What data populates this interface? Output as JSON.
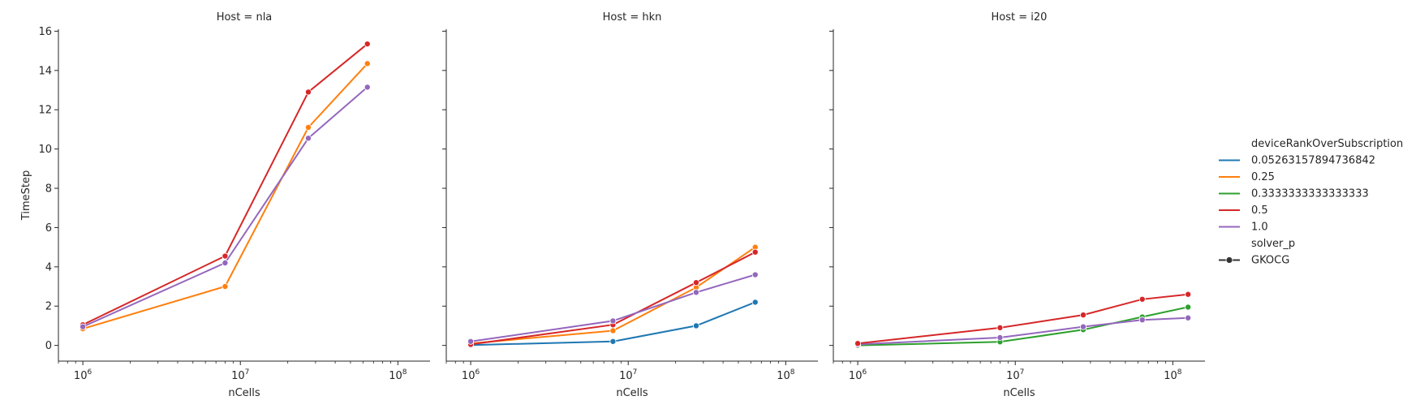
{
  "chart_data": [
    {
      "type": "line",
      "title": "Host = nla",
      "xlabel": "nCells",
      "ylabel": "TimeStep",
      "xscale": "log",
      "xlim": [
        700000,
        160000000
      ],
      "ylim": [
        -0.8,
        16.1
      ],
      "xticks": [
        {
          "value": 1000000,
          "base": "10",
          "exp": "6"
        },
        {
          "value": 10000000,
          "base": "10",
          "exp": "7"
        },
        {
          "value": 100000000,
          "base": "10",
          "exp": "8"
        }
      ],
      "yticks": [
        "0",
        "2",
        "4",
        "6",
        "8",
        "10",
        "12",
        "14",
        "16"
      ],
      "series": [
        {
          "name": "0.25",
          "color": "#ff7f0e",
          "x": [
            1000000,
            8000000,
            27000000,
            64000000
          ],
          "y": [
            0.85,
            3.0,
            11.1,
            14.35
          ]
        },
        {
          "name": "0.5",
          "color": "#d62728",
          "x": [
            1000000,
            8000000,
            27000000,
            64000000
          ],
          "y": [
            1.05,
            4.55,
            12.9,
            15.35
          ]
        },
        {
          "name": "1.0",
          "color": "#9467bd",
          "x": [
            1000000,
            8000000,
            27000000,
            64000000
          ],
          "y": [
            0.95,
            4.2,
            10.55,
            13.15
          ]
        }
      ]
    },
    {
      "type": "line",
      "title": "Host = hkn",
      "xlabel": "nCells",
      "ylabel": "",
      "xscale": "log",
      "xlim": [
        700000,
        160000000
      ],
      "ylim": [
        -0.8,
        16.1
      ],
      "xticks": [
        {
          "value": 1000000,
          "base": "10",
          "exp": "6"
        },
        {
          "value": 10000000,
          "base": "10",
          "exp": "7"
        },
        {
          "value": 100000000,
          "base": "10",
          "exp": "8"
        }
      ],
      "yticks": [],
      "series": [
        {
          "name": "0.05263157894736842",
          "color": "#1f77b4",
          "x": [
            1000000,
            8000000,
            27000000,
            64000000
          ],
          "y": [
            0.02,
            0.2,
            1.0,
            2.2
          ]
        },
        {
          "name": "0.25",
          "color": "#ff7f0e",
          "x": [
            1000000,
            8000000,
            27000000,
            64000000
          ],
          "y": [
            0.1,
            0.75,
            2.95,
            5.0
          ]
        },
        {
          "name": "0.5",
          "color": "#d62728",
          "x": [
            1000000,
            8000000,
            27000000,
            64000000
          ],
          "y": [
            0.05,
            1.05,
            3.2,
            4.75
          ]
        },
        {
          "name": "1.0",
          "color": "#9467bd",
          "x": [
            1000000,
            8000000,
            27000000,
            64000000
          ],
          "y": [
            0.2,
            1.25,
            2.7,
            3.6
          ]
        }
      ]
    },
    {
      "type": "line",
      "title": "Host = i20",
      "xlabel": "nCells",
      "ylabel": "",
      "xscale": "log",
      "xlim": [
        700000,
        160000000
      ],
      "ylim": [
        -0.8,
        16.1
      ],
      "xticks": [
        {
          "value": 1000000,
          "base": "10",
          "exp": "6"
        },
        {
          "value": 10000000,
          "base": "10",
          "exp": "7"
        },
        {
          "value": 100000000,
          "base": "10",
          "exp": "8"
        }
      ],
      "yticks": [],
      "series": [
        {
          "name": "0.3333333333333333",
          "color": "#2ca02c",
          "x": [
            1000000,
            8000000,
            27000000,
            64000000,
            125000000
          ],
          "y": [
            0.0,
            0.18,
            0.8,
            1.45,
            1.95
          ]
        },
        {
          "name": "1.0",
          "color": "#9467bd",
          "x": [
            1000000,
            8000000,
            27000000,
            64000000,
            125000000
          ],
          "y": [
            0.05,
            0.4,
            0.95,
            1.3,
            1.4
          ]
        },
        {
          "name": "0.5",
          "color": "#d62728",
          "x": [
            1000000,
            8000000,
            27000000,
            64000000,
            125000000
          ],
          "y": [
            0.1,
            0.9,
            1.55,
            2.35,
            2.6
          ]
        }
      ]
    }
  ],
  "legend": {
    "hue_title": "deviceRankOverSubscription",
    "hue_items": [
      {
        "label": "0.05263157894736842",
        "color": "#1f77b4"
      },
      {
        "label": "0.25",
        "color": "#ff7f0e"
      },
      {
        "label": "0.3333333333333333",
        "color": "#2ca02c"
      },
      {
        "label": "0.5",
        "color": "#d62728"
      },
      {
        "label": "1.0",
        "color": "#9467bd"
      }
    ],
    "style_title": "solver_p",
    "style_items": [
      {
        "label": "GKOCG",
        "color": "#333333"
      }
    ]
  }
}
